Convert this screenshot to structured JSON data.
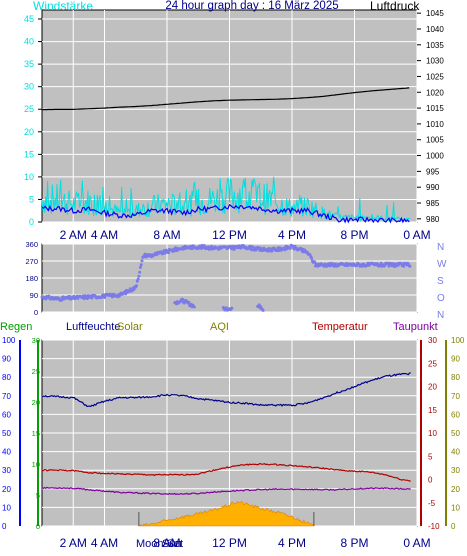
{
  "colors": {
    "background": "#ffffff",
    "panel": "#c0c0c0",
    "grid": "#ffffff",
    "cyan": "#00e0e0",
    "navy": "#00008b",
    "blue": "#0000ff",
    "periwinkle": "#7b7bea",
    "darkred": "#b00000",
    "purple": "#8000a0",
    "green": "#00a000",
    "olive": "#808000",
    "gold": "#ffb000",
    "black": "#000000"
  },
  "xaxis": {
    "ticks": [
      "2 AM",
      "4 AM",
      "8 AM",
      "12 PM",
      "4 PM",
      "8 PM",
      "0 AM"
    ]
  },
  "chart_data": [
    {
      "type": "line",
      "title": "24 hour graph day : 16 März 2025",
      "left_label": "Windstärke",
      "right_label": "Luftdruck",
      "left_ticks": [
        "0",
        "5",
        "10",
        "15",
        "20",
        "25",
        "30",
        "35",
        "40",
        "45"
      ],
      "right_ticks": [
        "980",
        "985",
        "990",
        "995",
        "1000",
        "1005",
        "1010",
        "1015",
        "1020",
        "1025",
        "1030",
        "1035",
        "1040",
        "1045"
      ],
      "ylim_left": [
        0,
        47
      ],
      "ylim_right": [
        979,
        1046
      ],
      "x_hours": [
        0,
        24
      ],
      "series": [
        {
          "color": "black",
          "axis": "right",
          "x": [
            0,
            1,
            2,
            3,
            4,
            5,
            6,
            7,
            8,
            9,
            10,
            11,
            12,
            13,
            14,
            15,
            16,
            17,
            18,
            19,
            20,
            21,
            22,
            23,
            23.6
          ],
          "values": [
            1014.5,
            1014.6,
            1014.6,
            1014.8,
            1015,
            1015.3,
            1015.5,
            1015.8,
            1016.2,
            1016.6,
            1017,
            1017.3,
            1017.5,
            1017.6,
            1017.7,
            1017.8,
            1018,
            1018.3,
            1018.7,
            1019.3,
            1019.9,
            1020.4,
            1020.8,
            1021.2,
            1021.4
          ]
        },
        {
          "color": "cyan",
          "axis": "left",
          "noisy": true,
          "x": [
            0,
            1,
            2,
            3,
            4,
            5,
            6,
            7,
            8,
            9,
            10,
            11,
            12,
            13,
            14,
            15,
            16,
            17,
            18,
            19,
            20,
            21,
            22,
            23,
            23.6
          ],
          "values": [
            5,
            5,
            4,
            4.5,
            3.5,
            2,
            2.5,
            3.5,
            4,
            3.5,
            4.5,
            5,
            6,
            6.5,
            5.5,
            4.5,
            3,
            3.5,
            2,
            1,
            1,
            1,
            0.8,
            0.5,
            0.5
          ]
        },
        {
          "color": "blue",
          "axis": "left",
          "x": [
            0,
            1,
            2,
            3,
            4,
            5,
            6,
            7,
            8,
            9,
            10,
            11,
            12,
            13,
            14,
            15,
            16,
            17,
            18,
            19,
            20,
            21,
            22,
            23,
            23.6
          ],
          "values": [
            3,
            3,
            2.5,
            2.8,
            2,
            1.5,
            1.5,
            2.5,
            2.5,
            2,
            2.8,
            3,
            3.5,
            3.5,
            3,
            2.5,
            2.5,
            2.5,
            1.5,
            0.5,
            0.5,
            0.5,
            0.3,
            0.3,
            0.3
          ]
        }
      ]
    },
    {
      "type": "scatter",
      "right_labels": [
        "N",
        "W",
        "S",
        "O",
        "N"
      ],
      "left_ticks": [
        "0",
        "90",
        "180",
        "270",
        "360"
      ],
      "ylim": [
        0,
        360
      ],
      "x_hours": [
        0,
        24
      ],
      "series": [
        {
          "color": "periwinkle",
          "x": [
            0,
            1,
            2,
            3,
            4,
            5,
            6,
            6.5,
            7,
            8,
            9,
            10,
            11,
            12,
            13,
            14,
            15,
            16,
            17,
            17.5,
            18,
            19,
            20,
            21,
            22,
            23,
            23.6
          ],
          "values": [
            80,
            70,
            75,
            80,
            85,
            90,
            130,
            300,
            300,
            320,
            340,
            345,
            340,
            340,
            345,
            330,
            330,
            345,
            315,
            250,
            250,
            250,
            250,
            250,
            250,
            250,
            250
          ]
        },
        {
          "color": "periwinkle",
          "x": [
            8.5,
            9,
            9.5,
            10,
            11,
            12,
            14,
            14.2
          ],
          "values": [
            50,
            60,
            40,
            20,
            10,
            20,
            30,
            10
          ]
        }
      ]
    },
    {
      "type": "line",
      "legend": [
        "Regen",
        "Luftfeuchte",
        "Solar",
        "AQI",
        "Temperatur",
        "Taupunkt"
      ],
      "axes": {
        "rain": [
          "0",
          "5",
          "10",
          "15",
          "20",
          "25",
          "30"
        ],
        "humidity": [
          "0",
          "10",
          "20",
          "30",
          "40",
          "50",
          "60",
          "70",
          "80",
          "90",
          "100"
        ],
        "temperature": [
          "-10",
          "-5",
          "0",
          "5",
          "10",
          "15",
          "20",
          "25",
          "30"
        ],
        "dewpoint": [
          "0",
          "10",
          "20",
          "30",
          "40",
          "50",
          "60",
          "70",
          "80",
          "90",
          "100"
        ]
      },
      "x_hours": [
        0,
        24
      ],
      "moon_labels": [
        "Moon Set",
        "Sun"
      ],
      "series": [
        {
          "name": "Luftfeuchte",
          "color": "navy",
          "unit_range": [
            0,
            100
          ],
          "x": [
            0,
            1,
            2,
            3,
            4,
            5,
            6,
            7,
            8,
            9,
            10,
            11,
            12,
            13,
            14,
            15,
            16,
            17,
            18,
            19,
            20,
            21,
            22,
            23,
            23.6
          ],
          "values": [
            70,
            69.5,
            69,
            64,
            67,
            69,
            69,
            69.5,
            70.5,
            70,
            68.5,
            67.5,
            66.5,
            66,
            65,
            65,
            65,
            66,
            69,
            72,
            75,
            78,
            80.5,
            81.5,
            82
          ]
        },
        {
          "name": "Temperatur",
          "color": "darkred",
          "unit_range": [
            -10,
            30
          ],
          "x": [
            0,
            1,
            2,
            3,
            4,
            5,
            6,
            7,
            8,
            9,
            10,
            11,
            12,
            13,
            14,
            15,
            16,
            17,
            18,
            19,
            20,
            21,
            22,
            23,
            23.6
          ],
          "values": [
            2,
            2,
            1.9,
            1.5,
            1.3,
            1.2,
            1.1,
            1,
            1,
            1,
            1.2,
            2,
            2.7,
            3.2,
            3.3,
            3.2,
            3,
            2.7,
            2.4,
            2,
            1.8,
            1.6,
            1,
            0,
            -0.3
          ]
        },
        {
          "name": "Taupunkt",
          "color": "purple",
          "unit_range": [
            -10,
            30
          ],
          "x": [
            0,
            1,
            2,
            3,
            4,
            5,
            6,
            7,
            8,
            9,
            10,
            11,
            12,
            13,
            14,
            15,
            16,
            17,
            18,
            19,
            20,
            21,
            22,
            23,
            23.6
          ],
          "values": [
            -1.8,
            -1.8,
            -1.9,
            -2.2,
            -2.5,
            -2.8,
            -2.9,
            -3,
            -3.1,
            -3.1,
            -3,
            -2.7,
            -2.5,
            -2.3,
            -2.2,
            -2.1,
            -2.1,
            -2.1,
            -2.2,
            -2.2,
            -2,
            -1.9,
            -1.9,
            -2,
            -2.1
          ]
        },
        {
          "name": "Solar",
          "color": "gold",
          "unit_range": [
            0,
            100
          ],
          "filled": true,
          "x": [
            6.2,
            7,
            8,
            9,
            10,
            11,
            12,
            12.5,
            13,
            14,
            15,
            16,
            17,
            17.4
          ],
          "values": [
            0,
            1,
            3,
            5,
            6.5,
            8.5,
            11.5,
            13,
            12,
            9.5,
            7.5,
            5,
            1.5,
            0
          ]
        }
      ]
    }
  ]
}
